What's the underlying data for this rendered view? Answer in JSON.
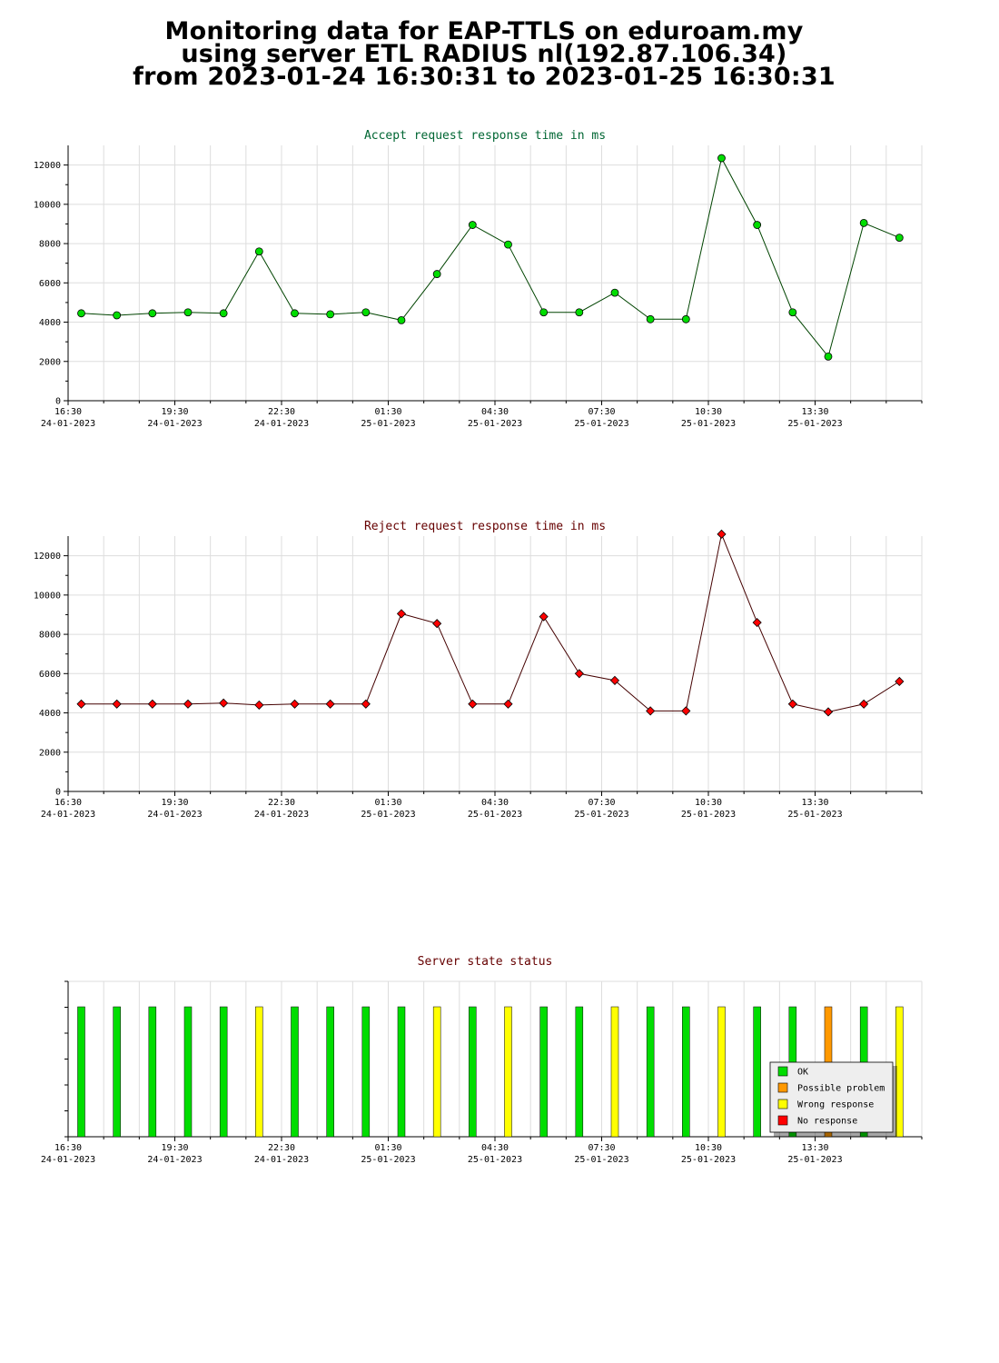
{
  "header": {
    "line1": "Monitoring data for EAP-TTLS on eduroam.my",
    "line2": "using server ETL RADIUS nl(192.87.106.34)",
    "line3": "from 2023-01-24 16:30:31 to 2023-01-25 16:30:31"
  },
  "colors": {
    "accept_line": "#004400",
    "accept_marker": "#00dd00",
    "accept_title": "#006633",
    "reject_line": "#440000",
    "reject_marker": "#ff0000",
    "reject_title": "#660000",
    "status_title": "#660000",
    "ok": "#00dd00",
    "possible_problem": "#ff9900",
    "wrong_response": "#ffff00",
    "no_response": "#ff0000"
  },
  "x_ticks": [
    {
      "time": "16:30",
      "date": "24-01-2023"
    },
    {
      "time": "19:30",
      "date": "24-01-2023"
    },
    {
      "time": "22:30",
      "date": "24-01-2023"
    },
    {
      "time": "01:30",
      "date": "25-01-2023"
    },
    {
      "time": "04:30",
      "date": "25-01-2023"
    },
    {
      "time": "07:30",
      "date": "25-01-2023"
    },
    {
      "time": "10:30",
      "date": "25-01-2023"
    },
    {
      "time": "13:30",
      "date": "25-01-2023"
    }
  ],
  "chart_data": [
    {
      "type": "line",
      "title": "Accept request response time in ms",
      "x_unit": "hours",
      "xlim": [
        0,
        24
      ],
      "ylim": [
        0,
        13000
      ],
      "yticks": [
        0,
        2000,
        4000,
        6000,
        8000,
        10000,
        12000
      ],
      "grid": true,
      "x": [
        0.37,
        1.37,
        2.37,
        3.37,
        4.37,
        5.37,
        6.37,
        7.37,
        8.37,
        9.37,
        10.37,
        11.37,
        12.37,
        13.37,
        14.37,
        15.37,
        16.37,
        17.37,
        18.37,
        19.37,
        20.37,
        21.37,
        22.37,
        23.37
      ],
      "y": [
        4450,
        4350,
        4450,
        4500,
        4450,
        7600,
        4450,
        4400,
        4500,
        4100,
        6450,
        8950,
        7950,
        4500,
        4500,
        5500,
        4150,
        4150,
        12350,
        8950,
        4500,
        2250,
        9050,
        8300
      ]
    },
    {
      "type": "line",
      "title": "Reject request response time in ms",
      "x_unit": "hours",
      "xlim": [
        0,
        24
      ],
      "ylim": [
        0,
        13000
      ],
      "yticks": [
        0,
        2000,
        4000,
        6000,
        8000,
        10000,
        12000
      ],
      "grid": true,
      "x": [
        0.37,
        1.37,
        2.37,
        3.37,
        4.37,
        5.37,
        6.37,
        7.37,
        8.37,
        9.37,
        10.37,
        11.37,
        12.37,
        13.37,
        14.37,
        15.37,
        16.37,
        17.37,
        18.37,
        19.37,
        20.37,
        21.37,
        22.37,
        23.37
      ],
      "y": [
        4450,
        4450,
        4450,
        4450,
        4500,
        4400,
        4450,
        4450,
        4450,
        9050,
        8550,
        4450,
        4450,
        8900,
        6000,
        5650,
        4100,
        4100,
        13100,
        8600,
        4450,
        4050,
        4450,
        5600
      ]
    },
    {
      "type": "bar",
      "title": "Server state status",
      "x_unit": "hours",
      "xlim": [
        0,
        24
      ],
      "x": [
        0.37,
        1.37,
        2.37,
        3.37,
        4.37,
        5.37,
        6.37,
        7.37,
        8.37,
        9.37,
        10.37,
        11.37,
        12.37,
        13.37,
        14.37,
        15.37,
        16.37,
        17.37,
        18.37,
        19.37,
        20.37,
        21.37,
        22.37,
        23.37
      ],
      "status": [
        "ok",
        "ok",
        "ok",
        "ok",
        "ok",
        "wrong",
        "ok",
        "ok",
        "ok",
        "ok",
        "wrong",
        "ok",
        "wrong",
        "ok",
        "ok",
        "wrong",
        "ok",
        "ok",
        "wrong",
        "ok",
        "ok",
        "possible",
        "ok",
        "wrong"
      ],
      "legend": {
        "position": "bottom-right",
        "items": [
          {
            "key": "ok",
            "label": "OK",
            "color": "#00dd00"
          },
          {
            "key": "possible",
            "label": "Possible problem",
            "color": "#ff9900"
          },
          {
            "key": "wrong",
            "label": "Wrong response",
            "color": "#ffff00"
          },
          {
            "key": "no",
            "label": "No response",
            "color": "#ff0000"
          }
        ]
      }
    }
  ]
}
